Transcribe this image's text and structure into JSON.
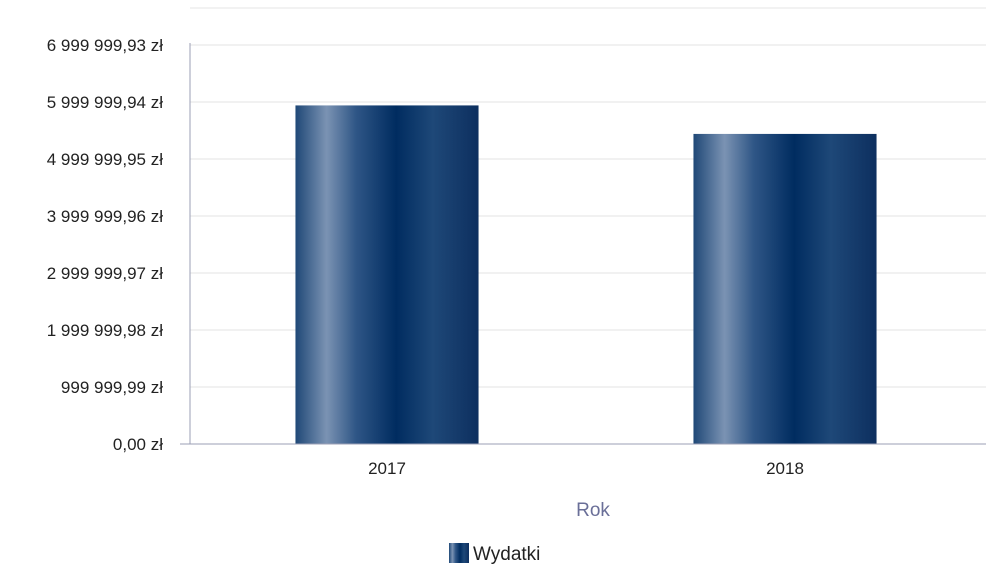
{
  "chart_data": {
    "type": "bar",
    "categories": [
      "2017",
      "2018"
    ],
    "series": [
      {
        "name": "Wydatki",
        "values": [
          5940000,
          5440000
        ]
      }
    ],
    "y_ticks": [
      {
        "value": 0,
        "label": "0,00 zł"
      },
      {
        "value": 999999.99,
        "label": "999 999,99 zł"
      },
      {
        "value": 1999999.98,
        "label": "1 999 999,98 zł"
      },
      {
        "value": 2999999.97,
        "label": "2 999 999,97 zł"
      },
      {
        "value": 3999999.96,
        "label": "3 999 999,96 zł"
      },
      {
        "value": 4999999.95,
        "label": "4 999 999,95 zł"
      },
      {
        "value": 5999999.94,
        "label": "5 999 999,94 zł"
      },
      {
        "value": 6999999.93,
        "label": "6 999 999,93 zł"
      }
    ],
    "ylim": [
      0,
      6999999.93
    ],
    "xlabel": "Rok",
    "ylabel": "",
    "title": "",
    "grid": true,
    "legend_position": "bottom",
    "colors": {
      "bar_dark": "#0c2e5e",
      "bar_light": "#7590b1",
      "grid": "#e3e3e3",
      "axis": "#9b9fb5",
      "axis_title": "#6a6f98"
    }
  }
}
